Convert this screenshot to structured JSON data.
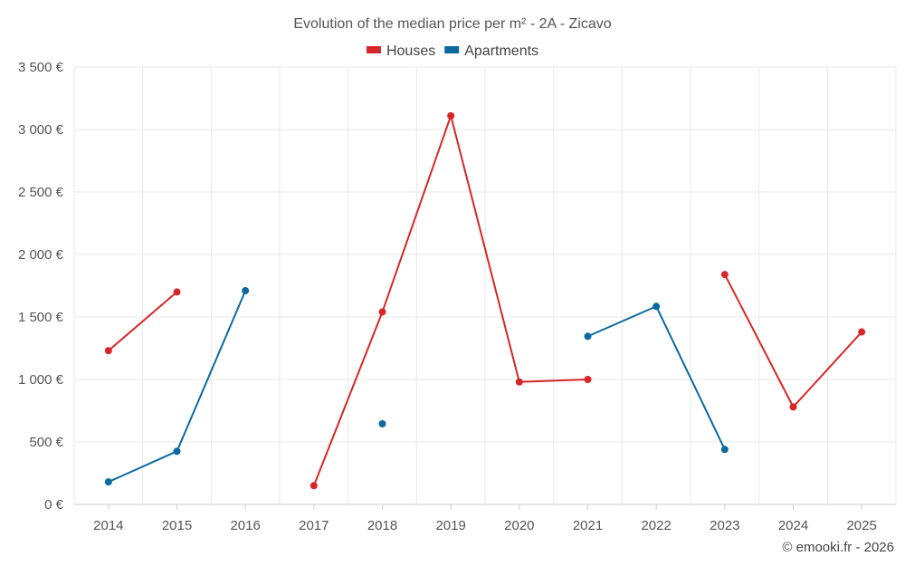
{
  "chart_data": {
    "type": "line",
    "title": "Evolution of the median price per m² - 2A - Zicavo",
    "categories": [
      "2014",
      "2015",
      "2016",
      "2017",
      "2018",
      "2019",
      "2020",
      "2021",
      "2022",
      "2023",
      "2024",
      "2025"
    ],
    "series": [
      {
        "name": "Houses",
        "color": "#d62728",
        "values": [
          1230,
          1700,
          null,
          150,
          1540,
          3110,
          980,
          1000,
          null,
          1840,
          780,
          1380
        ]
      },
      {
        "name": "Apartments",
        "color": "#0a6a9e",
        "values": [
          180,
          425,
          1710,
          null,
          645,
          null,
          null,
          1345,
          1585,
          440,
          null,
          null
        ]
      }
    ],
    "ylim": [
      0,
      3500
    ],
    "yticks": [
      0,
      500,
      1000,
      1500,
      2000,
      2500,
      3000,
      3500
    ],
    "ytick_labels": [
      "0 €",
      "500 €",
      "1 000 €",
      "1 500 €",
      "2 000 €",
      "2 500 €",
      "3 000 €",
      "3 500 €"
    ],
    "xlabel": "",
    "ylabel": "",
    "legend_position": "top-center",
    "grid": true
  },
  "credit": "© emooki.fr - 2026"
}
